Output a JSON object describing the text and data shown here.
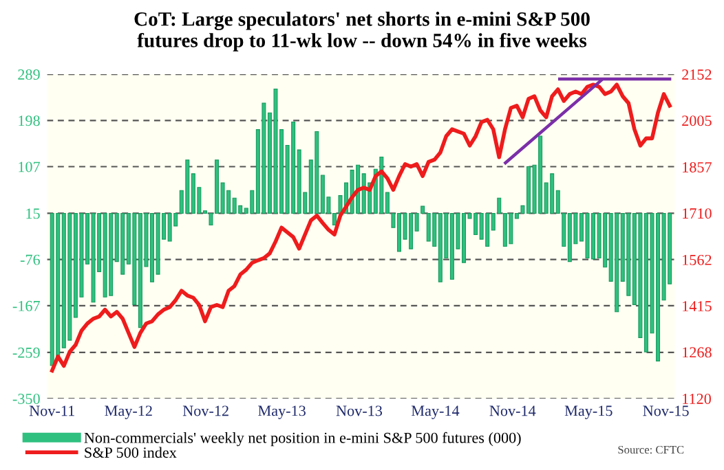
{
  "chart_data": {
    "type": "bar",
    "title": "CoT: Large speculators' net shorts in e-mini S&P 500\nfutures drop to 11-wk low -- down 54% in five weeks",
    "annotations": [
      "Source: CFTC"
    ],
    "x": [
      "2011-11-01",
      "2011-11-15",
      "2011-11-29",
      "2011-12-13",
      "2011-12-27",
      "2012-01-10",
      "2012-01-24",
      "2012-02-07",
      "2012-02-21",
      "2012-03-06",
      "2012-03-20",
      "2012-04-03",
      "2012-04-17",
      "2012-05-01",
      "2012-05-15",
      "2012-05-29",
      "2012-06-12",
      "2012-06-26",
      "2012-07-10",
      "2012-07-24",
      "2012-08-07",
      "2012-08-21",
      "2012-09-04",
      "2012-09-18",
      "2012-10-02",
      "2012-10-16",
      "2012-10-30",
      "2012-11-13",
      "2012-11-27",
      "2012-12-11",
      "2012-12-25",
      "2013-01-08",
      "2013-01-22",
      "2013-02-05",
      "2013-02-19",
      "2013-03-05",
      "2013-03-19",
      "2013-04-02",
      "2013-04-16",
      "2013-04-30",
      "2013-05-14",
      "2013-05-28",
      "2013-06-11",
      "2013-06-25",
      "2013-07-09",
      "2013-07-23",
      "2013-08-06",
      "2013-08-20",
      "2013-09-03",
      "2013-09-17",
      "2013-10-01",
      "2013-10-15",
      "2013-10-29",
      "2013-11-12",
      "2013-11-26",
      "2013-12-10",
      "2013-12-24",
      "2014-01-07",
      "2014-01-21",
      "2014-02-04",
      "2014-02-18",
      "2014-03-04",
      "2014-03-18",
      "2014-04-01",
      "2014-04-15",
      "2014-04-29",
      "2014-05-13",
      "2014-05-27",
      "2014-06-10",
      "2014-06-24",
      "2014-07-08",
      "2014-07-22",
      "2014-08-05",
      "2014-08-19",
      "2014-09-02",
      "2014-09-16",
      "2014-09-30",
      "2014-10-14",
      "2014-10-28",
      "2014-11-11",
      "2014-11-25",
      "2014-12-09",
      "2014-12-23",
      "2015-01-06",
      "2015-01-20",
      "2015-02-03",
      "2015-02-17",
      "2015-03-03",
      "2015-03-17",
      "2015-03-31",
      "2015-04-14",
      "2015-04-28",
      "2015-05-12",
      "2015-05-26",
      "2015-06-09",
      "2015-06-23",
      "2015-07-07",
      "2015-07-21",
      "2015-08-04",
      "2015-08-18",
      "2015-09-01",
      "2015-09-15",
      "2015-09-29",
      "2015-10-13",
      "2015-10-27",
      "2015-11-10"
    ],
    "xlim": [
      "2011-10-20",
      "2015-11-22"
    ],
    "xticks": [
      {
        "value": "2011-11-01",
        "label": "Nov-11"
      },
      {
        "value": "2012-05-01",
        "label": "May-12"
      },
      {
        "value": "2012-11-01",
        "label": "Nov-12"
      },
      {
        "value": "2013-05-01",
        "label": "May-13"
      },
      {
        "value": "2013-11-01",
        "label": "Nov-13"
      },
      {
        "value": "2014-05-01",
        "label": "May-14"
      },
      {
        "value": "2014-11-01",
        "label": "Nov-14"
      },
      {
        "value": "2015-05-01",
        "label": "May-15"
      },
      {
        "value": "2015-11-01",
        "label": "Nov-15"
      }
    ],
    "ylim": [
      -350,
      289
    ],
    "yticks": [
      -350,
      -259,
      -167,
      -76,
      15,
      107,
      198,
      289
    ],
    "y2lim": [
      1120,
      2152
    ],
    "y2ticks": [
      1120,
      1268,
      1415,
      1562,
      1710,
      1857,
      2005,
      2152
    ],
    "grid": "y",
    "legend": "bottom",
    "series": [
      {
        "name": "Non-commercials' weekly net position in e-mini S&P 500 futures (000)",
        "color": "#2fc07f",
        "base": [
          15,
          15,
          15,
          15,
          15,
          15,
          15,
          15,
          15,
          15,
          15,
          15,
          15,
          15,
          15,
          15,
          15,
          15,
          15,
          15,
          15,
          15,
          15,
          15,
          15,
          15,
          15,
          15,
          15,
          15,
          15,
          15,
          15,
          15,
          15,
          15,
          15,
          15,
          15,
          15,
          15,
          15,
          15,
          15,
          15,
          15,
          15,
          15,
          15,
          15,
          15,
          15,
          15,
          15,
          15,
          15,
          15,
          15,
          15,
          15,
          15,
          15,
          15,
          15,
          15,
          15,
          15,
          15,
          15,
          15,
          15,
          15,
          15,
          15,
          15,
          15,
          15,
          15,
          15,
          15,
          15,
          15,
          15,
          15,
          15,
          15,
          15,
          15,
          15,
          15,
          15,
          15,
          15,
          15,
          15,
          15,
          15,
          15,
          15,
          15,
          15,
          15,
          15,
          15,
          15,
          15
        ],
        "values": [
          -300,
          -285,
          -265,
          -250,
          -205,
          -165,
          -100,
          -175,
          -115,
          -165,
          -162,
          -95,
          -120,
          -100,
          -180,
          -225,
          -105,
          -135,
          -120,
          -51,
          -55,
          -25,
          45,
          105,
          78,
          51,
          5,
          -23,
          105,
          60,
          45,
          30,
          15,
          10,
          45,
          165,
          217,
          198,
          245,
          165,
          134,
          180,
          125,
          41,
          105,
          161,
          75,
          32,
          -23,
          35,
          60,
          85,
          95,
          78,
          60,
          87,
          111,
          41,
          -28,
          -75,
          -51,
          -70,
          -35,
          14,
          -55,
          -65,
          -135,
          -88,
          -130,
          -70,
          -97,
          -10,
          -42,
          -51,
          -65,
          -33,
          30,
          -65,
          -60,
          -10,
          15,
          92,
          95,
          152,
          60,
          78,
          45,
          -65,
          -95,
          -60,
          -55,
          -88,
          -90,
          -88,
          -106,
          -134,
          -194,
          -134,
          -162,
          -180,
          -245,
          -273,
          -236,
          -291,
          -171,
          -139
        ]
      },
      {
        "name": "S&P 500 index",
        "type": "line",
        "axis": "y2",
        "color": "#ee1c1c",
        "values": [
          1209,
          1254,
          1224,
          1269,
          1291,
          1336,
          1359,
          1374,
          1381,
          1403,
          1381,
          1396,
          1374,
          1329,
          1284,
          1329,
          1359,
          1366,
          1388,
          1403,
          1411,
          1433,
          1463,
          1448,
          1441,
          1418,
          1366,
          1411,
          1418,
          1411,
          1463,
          1478,
          1515,
          1530,
          1552,
          1560,
          1567,
          1582,
          1620,
          1664,
          1649,
          1634,
          1597,
          1642,
          1687,
          1702,
          1679,
          1657,
          1642,
          1702,
          1731,
          1761,
          1784,
          1791,
          1784,
          1828,
          1843,
          1821,
          1784,
          1828,
          1866,
          1858,
          1866,
          1828,
          1873,
          1880,
          1903,
          1955,
          1977,
          1970,
          1963,
          1925,
          1955,
          2000,
          2007,
          1977,
          1888,
          1977,
          2045,
          2052,
          2015,
          2074,
          2082,
          2037,
          2015,
          2082,
          2104,
          2067,
          2089,
          2097,
          2089,
          2112,
          2119,
          2112,
          2089,
          2097,
          2119,
          2082,
          2060,
          1977,
          1925,
          1948,
          1948,
          2030,
          2089,
          2052
        ]
      },
      {
        "type": "line",
        "axis": "y2",
        "color": "#7b2fa8",
        "x": [
          "2014-10-15",
          "2015-06-01"
        ],
        "values": [
          1870,
          2134
        ]
      },
      {
        "type": "line",
        "axis": "y2",
        "color": "#7b2fa8",
        "x": [
          "2015-02-21",
          "2015-11-10"
        ],
        "values": [
          2137,
          2137
        ]
      }
    ]
  }
}
